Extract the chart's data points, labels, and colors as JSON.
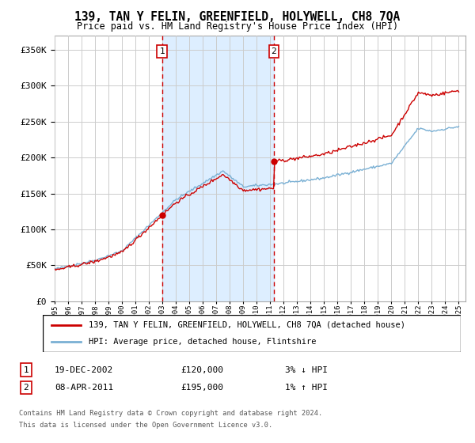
{
  "title": "139, TAN Y FELIN, GREENFIELD, HOLYWELL, CH8 7QA",
  "subtitle": "Price paid vs. HM Land Registry's House Price Index (HPI)",
  "legend_line1": "139, TAN Y FELIN, GREENFIELD, HOLYWELL, CH8 7QA (detached house)",
  "legend_line2": "HPI: Average price, detached house, Flintshire",
  "transaction1_date": "19-DEC-2002",
  "transaction1_price": 120000,
  "transaction1_pct": "3% ↓ HPI",
  "transaction2_date": "08-APR-2011",
  "transaction2_price": 195000,
  "transaction2_pct": "1% ↑ HPI",
  "transaction1_x": 2002.97,
  "transaction2_x": 2011.27,
  "price_color": "#cc0000",
  "hpi_color": "#7ab0d4",
  "shade_color": "#ddeeff",
  "grid_color": "#cccccc",
  "footnote1": "Contains HM Land Registry data © Crown copyright and database right 2024.",
  "footnote2": "This data is licensed under the Open Government Licence v3.0.",
  "ylim": [
    0,
    370000
  ],
  "yticks": [
    0,
    50000,
    100000,
    150000,
    200000,
    250000,
    300000,
    350000
  ]
}
